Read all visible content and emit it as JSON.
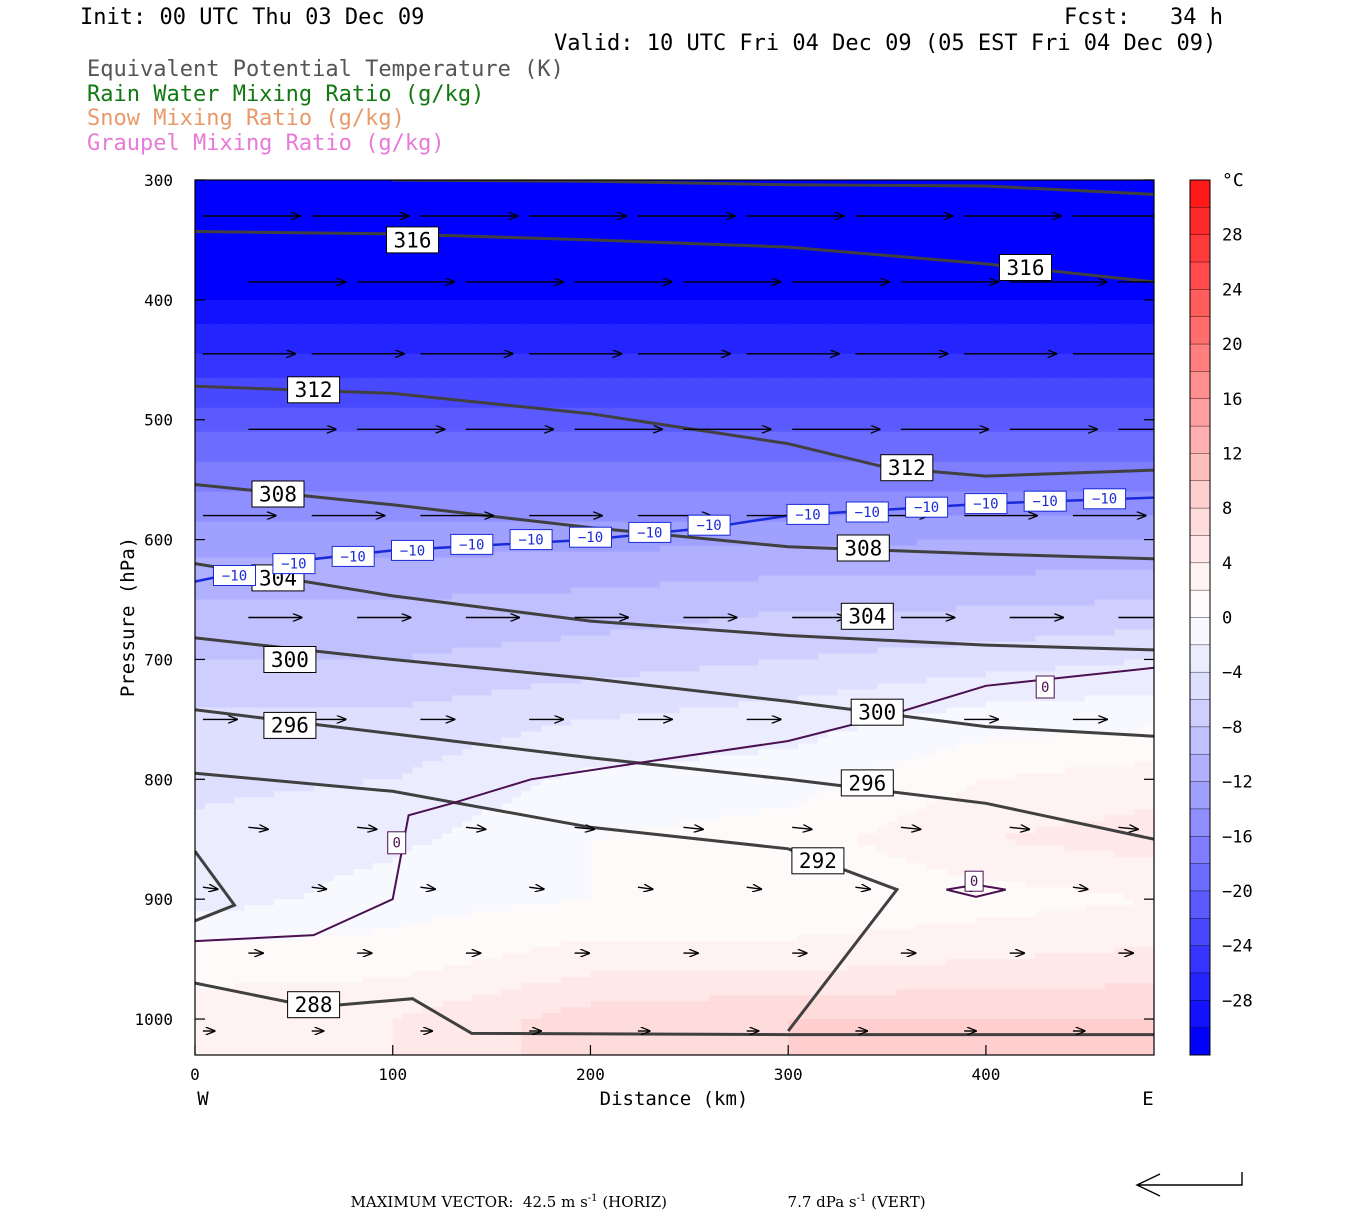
{
  "header": {
    "init": "Init: 00 UTC Thu 03 Dec 09",
    "fcst": "Fcst:   34 h",
    "valid": "Valid: 10 UTC Fri 04 Dec 09 (05 EST Fri 04 Dec 09)"
  },
  "legend": [
    {
      "label": "Equivalent Potential Temperature (K)",
      "color": "#555555"
    },
    {
      "label": "Rain Water Mixing Ratio (g/kg)",
      "color": "#127812"
    },
    {
      "label": "Snow Mixing Ratio (g/kg)",
      "color": "#e89a6a"
    },
    {
      "label": "Graupel Mixing Ratio (g/kg)",
      "color": "#e87ad8"
    }
  ],
  "chart_data": {
    "type": "heatmap",
    "xlabel": "Distance (km)",
    "ylabel": "Pressure (hPa)",
    "xlim": [
      0,
      485
    ],
    "ylim": [
      1030,
      300
    ],
    "x_ticks": [
      0,
      100,
      200,
      300,
      400
    ],
    "y_ticks": [
      300,
      400,
      500,
      600,
      700,
      800,
      900,
      1000
    ],
    "x_end_labels": {
      "left": "W",
      "right": "E"
    },
    "colorbar": {
      "unit": "°C",
      "tick_labels": [
        "28",
        "24",
        "20",
        "16",
        "12",
        "8",
        "4",
        "0",
        "−4",
        "−8",
        "−12",
        "−16",
        "−20",
        "−24",
        "−28"
      ],
      "levels": [
        32,
        30,
        28,
        26,
        24,
        22,
        20,
        18,
        16,
        14,
        12,
        10,
        8,
        6,
        4,
        2,
        0,
        -2,
        -4,
        -6,
        -8,
        -10,
        -12,
        -14,
        -16,
        -18,
        -20,
        -22,
        -24,
        -26,
        -28,
        -30
      ],
      "colors": [
        "#ff1a1a",
        "#ff2a2a",
        "#ff3a3a",
        "#ff4b4b",
        "#ff5c5c",
        "#ff6d6d",
        "#ff7e7e",
        "#ff8e8e",
        "#ff9f9f",
        "#ffafaf",
        "#ffbfbf",
        "#ffcece",
        "#ffdcdc",
        "#ffe8e8",
        "#fff2f2",
        "#fffafa",
        "#f8f8ff",
        "#ececff",
        "#dedeff",
        "#cfcfff",
        "#c0c0ff",
        "#b0b0ff",
        "#a0a0ff",
        "#8f8fff",
        "#7e7eff",
        "#6c6cff",
        "#5a5aff",
        "#4848ff",
        "#3535ff",
        "#2424ff",
        "#1212ff",
        "#0000ff"
      ]
    },
    "temperature_field": {
      "comment_units": "°C at sample pressures",
      "pressures": [
        300,
        400,
        500,
        560,
        600,
        650,
        700,
        750,
        800,
        850,
        900,
        950,
        1000
      ],
      "columns": [
        {
          "x": 0,
          "values": [
            -30,
            -28,
            -19,
            -14,
            -11,
            -8,
            -6,
            -3.5,
            -2.5,
            -1.5,
            -1,
            3,
            5
          ]
        },
        {
          "x": 100,
          "values": [
            -30,
            -28,
            -19,
            -14,
            -11,
            -8,
            -6,
            -3.5,
            -2,
            -0.5,
            1,
            3,
            6
          ]
        },
        {
          "x": 200,
          "values": [
            -30,
            -28,
            -19,
            -14,
            -10.5,
            -7.5,
            -5,
            -2,
            0.5,
            2,
            2,
            5,
            9
          ]
        },
        {
          "x": 300,
          "values": [
            -30,
            -28,
            -19,
            -14,
            -10.5,
            -6.5,
            -4,
            -1,
            1,
            3,
            2,
            5,
            10
          ]
        },
        {
          "x": 400,
          "values": [
            -30,
            -28,
            -19,
            -14,
            -10,
            -6.5,
            -3,
            1,
            4,
            6,
            3,
            6,
            10
          ]
        },
        {
          "x": 485,
          "values": [
            -30,
            -28,
            -19,
            -14,
            -10,
            -6,
            -2,
            1.5,
            5,
            7,
            4,
            6.5,
            10
          ]
        }
      ]
    },
    "theta_e_contours": [
      {
        "label": "316",
        "points": [
          [
            0,
            343
          ],
          [
            100,
            345
          ],
          [
            200,
            350
          ],
          [
            300,
            356
          ],
          [
            400,
            370
          ],
          [
            485,
            385
          ]
        ]
      },
      {
        "label": "316",
        "points": [
          [
            100,
            300
          ],
          [
            200,
            301
          ],
          [
            300,
            304
          ],
          [
            400,
            305
          ],
          [
            485,
            312
          ]
        ]
      },
      {
        "label": "312",
        "points": [
          [
            0,
            472
          ],
          [
            100,
            478
          ],
          [
            200,
            495
          ],
          [
            300,
            520
          ],
          [
            350,
            540
          ],
          [
            400,
            547
          ],
          [
            485,
            542
          ]
        ]
      },
      {
        "label": "308",
        "points": [
          [
            0,
            554
          ],
          [
            100,
            571
          ],
          [
            200,
            590
          ],
          [
            300,
            606
          ],
          [
            400,
            612
          ],
          [
            485,
            616
          ]
        ]
      },
      {
        "label": "304",
        "points": [
          [
            0,
            620
          ],
          [
            100,
            647
          ],
          [
            200,
            668
          ],
          [
            300,
            680
          ],
          [
            400,
            688
          ],
          [
            485,
            692
          ]
        ]
      },
      {
        "label": "300",
        "points": [
          [
            0,
            682
          ],
          [
            100,
            700
          ],
          [
            200,
            716
          ],
          [
            300,
            735
          ],
          [
            400,
            756
          ],
          [
            485,
            764
          ]
        ]
      },
      {
        "label": "296",
        "points": [
          [
            0,
            742
          ],
          [
            100,
            762
          ],
          [
            200,
            782
          ],
          [
            300,
            800
          ],
          [
            400,
            820
          ],
          [
            485,
            850
          ]
        ]
      },
      {
        "label": "292",
        "points": [
          [
            0,
            795
          ],
          [
            100,
            810
          ],
          [
            200,
            840
          ],
          [
            300,
            858
          ],
          [
            355,
            892
          ],
          [
            300,
            1010
          ]
        ]
      },
      {
        "label": "288",
        "points": [
          [
            0,
            970
          ],
          [
            60,
            990
          ],
          [
            110,
            983
          ],
          [
            140,
            1012
          ],
          [
            300,
            1013
          ],
          [
            485,
            1013
          ]
        ]
      },
      {
        "label": "",
        "points": [
          [
            0,
            860
          ],
          [
            20,
            905
          ],
          [
            0,
            918
          ]
        ]
      }
    ],
    "zero_isotherm": {
      "label": "0",
      "points": [
        [
          0,
          935
        ],
        [
          60,
          930
        ],
        [
          100,
          900
        ],
        [
          108,
          830
        ],
        [
          130,
          820
        ],
        [
          170,
          800
        ],
        [
          230,
          785
        ],
        [
          300,
          768
        ],
        [
          350,
          747
        ],
        [
          400,
          722
        ],
        [
          485,
          707
        ]
      ]
    },
    "zero_isotherm_small": {
      "label": "0",
      "points": [
        [
          380,
          892
        ],
        [
          395,
          888
        ],
        [
          410,
          892
        ],
        [
          395,
          898
        ]
      ]
    },
    "minus10_isotherm": {
      "label": "-10",
      "label_text": "−10",
      "points": [
        [
          0,
          635
        ],
        [
          50,
          618
        ],
        [
          100,
          609
        ],
        [
          200,
          600
        ],
        [
          260,
          590
        ],
        [
          300,
          580
        ],
        [
          400,
          570
        ],
        [
          485,
          565
        ]
      ]
    },
    "wind_vectors_rows": [
      {
        "p": 330,
        "u": 1.0
      },
      {
        "p": 385,
        "u": 1.0
      },
      {
        "p": 445,
        "u": 0.95
      },
      {
        "p": 508,
        "u": 0.9
      },
      {
        "p": 580,
        "u": 0.75
      },
      {
        "p": 665,
        "u": 0.55
      },
      {
        "p": 750,
        "u": 0.35
      },
      {
        "p": 840,
        "u": 0.2
      },
      {
        "p": 890,
        "u": 0.15
      },
      {
        "p": 945,
        "u": 0.15
      },
      {
        "p": 1010,
        "u": 0.12
      }
    ],
    "max_vector": {
      "horiz": "MAXIMUM VECTOR:  42.5 m s",
      "horiz_unit": "(HORIZ)",
      "vert": "7.7 dPa s",
      "vert_unit": "(VERT)",
      "exponent": "-1"
    }
  }
}
